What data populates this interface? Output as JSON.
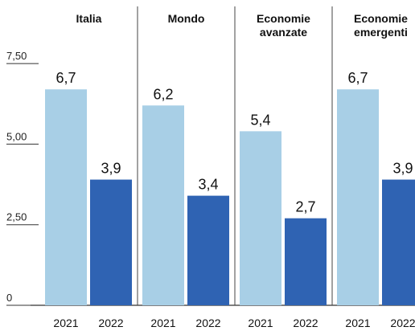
{
  "chart_data": {
    "type": "bar",
    "title": "",
    "xlabel": "",
    "ylabel": "",
    "ylim": [
      0,
      8.6
    ],
    "yticks": [
      {
        "value": 0,
        "label": "0"
      },
      {
        "value": 2.5,
        "label": "2,50"
      },
      {
        "value": 5,
        "label": "5,00"
      },
      {
        "value": 7.5,
        "label": "7,50"
      }
    ],
    "grid": false,
    "colors": {
      "2021": "#a8cfe6",
      "2022": "#2f63b3"
    },
    "panels": [
      {
        "title_lines": [
          "Italia"
        ],
        "categories": [
          "2021",
          "2022"
        ],
        "values": [
          6.7,
          3.9
        ],
        "labels": [
          "6,7",
          "3,9"
        ]
      },
      {
        "title_lines": [
          "Mondo"
        ],
        "categories": [
          "2021",
          "2022"
        ],
        "values": [
          6.2,
          3.4
        ],
        "labels": [
          "6,2",
          "3,4"
        ]
      },
      {
        "title_lines": [
          "Economie",
          "avanzate"
        ],
        "categories": [
          "2021",
          "2022"
        ],
        "values": [
          5.4,
          2.7
        ],
        "labels": [
          "5,4",
          "2,7"
        ]
      },
      {
        "title_lines": [
          "Economie",
          "emergenti"
        ],
        "categories": [
          "2021",
          "2022"
        ],
        "values": [
          6.7,
          3.9
        ],
        "labels": [
          "6,7",
          "3,9"
        ]
      }
    ]
  }
}
